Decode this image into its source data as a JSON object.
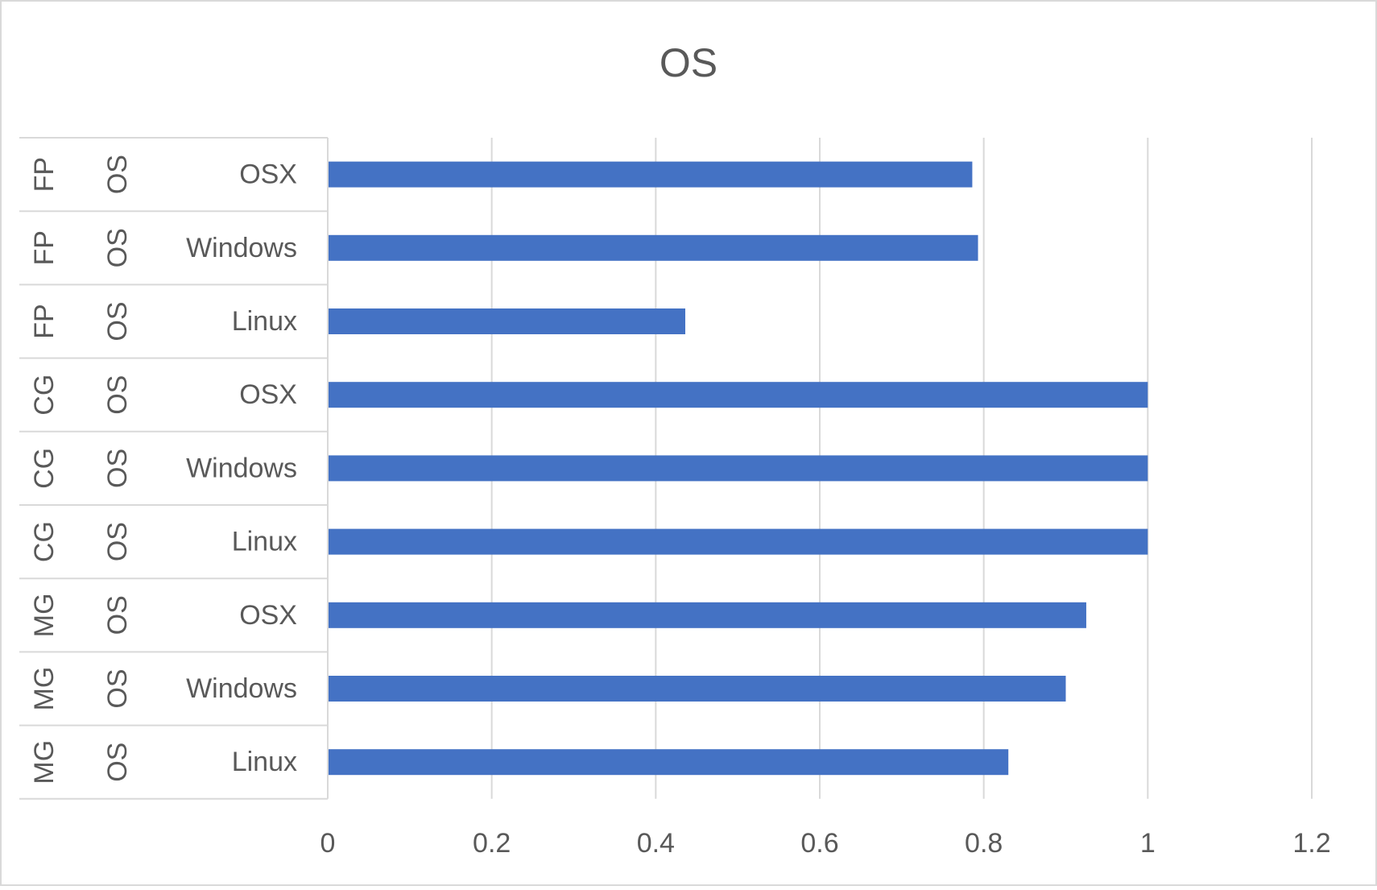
{
  "chart_data": {
    "type": "bar",
    "orientation": "horizontal",
    "title": "OS",
    "xlabel": "",
    "ylabel": "",
    "xlim": [
      0,
      1.2
    ],
    "x_ticks": [
      "0",
      "0.2",
      "0.4",
      "0.6",
      "0.8",
      "1",
      "1.2"
    ],
    "grid": true,
    "legend": "none",
    "bar_color": "#4472C4",
    "categories": [
      {
        "group": "FP",
        "level2": "OS",
        "label": "OSX"
      },
      {
        "group": "FP",
        "level2": "OS",
        "label": "Windows"
      },
      {
        "group": "FP",
        "level2": "OS",
        "label": "Linux"
      },
      {
        "group": "CG",
        "level2": "OS",
        "label": "OSX"
      },
      {
        "group": "CG",
        "level2": "OS",
        "label": "Windows"
      },
      {
        "group": "CG",
        "level2": "OS",
        "label": "Linux"
      },
      {
        "group": "MG",
        "level2": "OS",
        "label": "OSX"
      },
      {
        "group": "MG",
        "level2": "OS",
        "label": "Windows"
      },
      {
        "group": "MG",
        "level2": "OS",
        "label": "Linux"
      }
    ],
    "values": [
      0.786,
      0.793,
      0.436,
      1.0,
      1.0,
      1.0,
      0.925,
      0.9,
      0.83
    ]
  }
}
